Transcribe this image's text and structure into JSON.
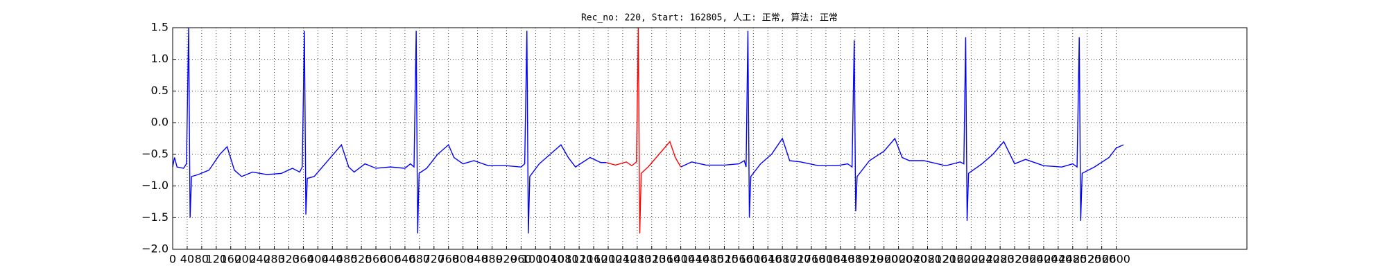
{
  "chart_data": {
    "type": "line",
    "title": "Rec_no: 220, Start: 162805, 人工: 正常, 算法: 正常",
    "xlim": [
      0,
      2960
    ],
    "ylim": [
      -2,
      1.5
    ],
    "xticks": [
      0,
      40,
      80,
      120,
      160,
      200,
      240,
      280,
      320,
      360,
      400,
      440,
      480,
      520,
      560,
      600,
      640,
      680,
      720,
      760,
      800,
      840,
      880,
      920,
      960,
      1000,
      1040,
      1080,
      1120,
      1160,
      1200,
      1240,
      1280,
      1320,
      1360,
      1400,
      1440,
      1480,
      1520,
      1560,
      1600,
      1640,
      1680,
      1720,
      1760,
      1800,
      1840,
      1880,
      1920,
      1960,
      2000,
      2040,
      2080,
      2120,
      2160,
      2200,
      2240,
      2280,
      2320,
      2360,
      2400,
      2440,
      2480,
      2520,
      2560,
      2600
    ],
    "yticks": [
      {
        "value": -2,
        "label": "−2.0"
      },
      {
        "value": -1.5,
        "label": "−1.5"
      },
      {
        "value": -1,
        "label": "−1.0"
      },
      {
        "value": -0.5,
        "label": "−0.5"
      },
      {
        "value": 0,
        "label": "0.0"
      },
      {
        "value": 0.5,
        "label": "0.5"
      },
      {
        "value": 1,
        "label": "1.0"
      },
      {
        "value": 1.5,
        "label": "1.5"
      }
    ],
    "grid": true,
    "series": [
      {
        "color": "#0000ff",
        "x": [
          0,
          5,
          12,
          30,
          38,
          44,
          48,
          52,
          70,
          100,
          130,
          150,
          170,
          190,
          220,
          260,
          300,
          330,
          350,
          357,
          363,
          367,
          371,
          390,
          420,
          450,
          465,
          485,
          500,
          530,
          560,
          600,
          640,
          655,
          665,
          671,
          675,
          679,
          700,
          730,
          760,
          775,
          800,
          830,
          870,
          920,
          960,
          970,
          976,
          980,
          984,
          1010,
          1040,
          1070,
          1090,
          1110,
          1150,
          1180,
          1195,
          null,
          1400,
          1430,
          1470,
          1520,
          1560,
          1575,
          1580,
          1585,
          1589,
          1593,
          1620,
          1650,
          1680,
          1700,
          1730,
          1780,
          1830,
          1860,
          1872,
          1878,
          1882,
          1886,
          1920,
          1960,
          1990,
          2010,
          2030,
          2070,
          2130,
          2170,
          2180,
          2185,
          2189,
          2193,
          2230,
          2260,
          2290,
          2320,
          2350,
          2400,
          2450,
          2480,
          2492,
          2498,
          2502,
          2506,
          2540,
          2580,
          2600,
          2620
        ],
        "values": [
          -0.7,
          -0.55,
          -0.7,
          -0.72,
          -0.65,
          1.5,
          -1.5,
          -0.85,
          -0.82,
          -0.75,
          -0.5,
          -0.38,
          -0.75,
          -0.85,
          -0.78,
          -0.82,
          -0.8,
          -0.72,
          -0.78,
          -0.7,
          1.45,
          -1.45,
          -0.88,
          -0.85,
          -0.65,
          -0.45,
          -0.35,
          -0.7,
          -0.78,
          -0.65,
          -0.72,
          -0.7,
          -0.72,
          -0.65,
          -0.7,
          1.45,
          -1.75,
          -0.8,
          -0.72,
          -0.5,
          -0.35,
          -0.55,
          -0.65,
          -0.6,
          -0.68,
          -0.68,
          -0.7,
          -0.65,
          1.45,
          -1.75,
          -0.85,
          -0.65,
          -0.5,
          -0.35,
          -0.55,
          -0.7,
          -0.55,
          -0.63,
          -0.63,
          null,
          -0.7,
          -0.62,
          -0.67,
          -0.67,
          -0.65,
          -0.6,
          -0.7,
          1.45,
          -1.5,
          -0.85,
          -0.65,
          -0.5,
          -0.25,
          -0.6,
          -0.62,
          -0.68,
          -0.68,
          -0.65,
          -0.7,
          1.3,
          -1.4,
          -0.85,
          -0.6,
          -0.45,
          -0.25,
          -0.55,
          -0.6,
          -0.6,
          -0.68,
          -0.62,
          -0.65,
          1.35,
          -1.55,
          -0.8,
          -0.65,
          -0.5,
          -0.3,
          -0.65,
          -0.58,
          -0.68,
          -0.7,
          -0.65,
          -0.7,
          1.35,
          -1.55,
          -0.8,
          -0.7,
          -0.55,
          -0.4,
          -0.35
        ]
      },
      {
        "color": "#ff0000",
        "x": [
          1195,
          1220,
          1250,
          1265,
          1278,
          1283,
          1287,
          1291,
          1310,
          1340,
          1370,
          1385,
          1400
        ],
        "values": [
          -0.63,
          -0.67,
          -0.62,
          -0.68,
          -0.62,
          1.5,
          -1.75,
          -0.8,
          -0.7,
          -0.5,
          -0.3,
          -0.55,
          -0.7
        ]
      }
    ]
  }
}
